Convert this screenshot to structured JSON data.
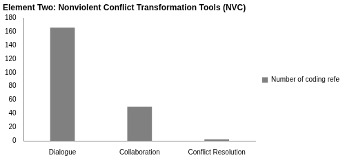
{
  "chart_data": {
    "type": "bar",
    "title": "Element Two: Nonviolent Conflict Transformation Tools (NVC)",
    "categories": [
      "Dialogue",
      "Collaboration",
      "Conflict Resolution"
    ],
    "series": [
      {
        "name": "Number of coding references",
        "color": "#808080",
        "values": [
          166,
          50,
          2
        ]
      }
    ],
    "ylim": [
      0,
      180
    ],
    "yticks": [
      0,
      20,
      40,
      60,
      80,
      100,
      120,
      140,
      160,
      180
    ],
    "grid": false,
    "legend": "right"
  }
}
